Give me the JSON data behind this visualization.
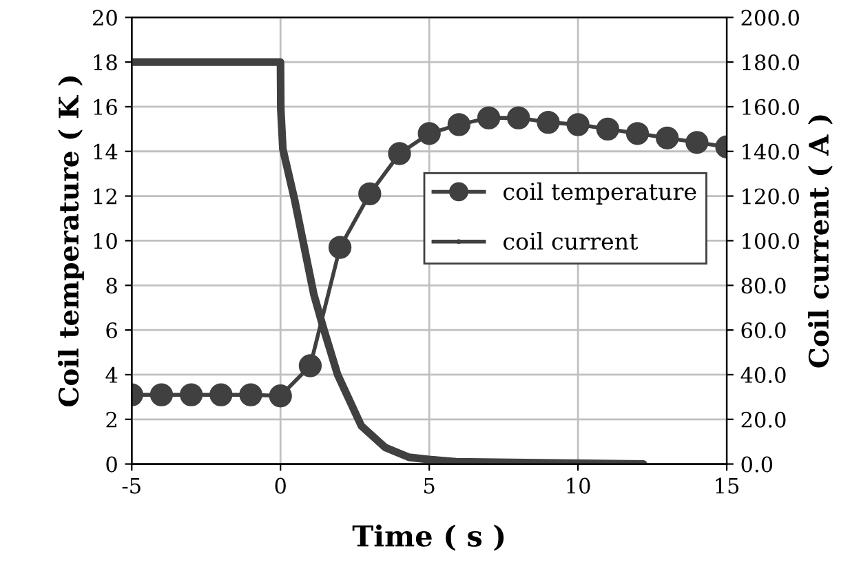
{
  "chart_data": {
    "type": "line",
    "xlabel": "Time ( s )",
    "ylabel": "Coil temperature ( K )",
    "y2label": "Coil current ( A )",
    "xlim": [
      -5,
      15
    ],
    "xticks": [
      -5,
      0,
      5,
      10,
      15
    ],
    "ylim": [
      0,
      20
    ],
    "yticks": [
      0,
      2,
      4,
      6,
      8,
      10,
      12,
      14,
      16,
      18,
      20
    ],
    "y2lim": [
      0,
      200
    ],
    "y2ticks": [
      {
        "value": 0,
        "label": "0.0"
      },
      {
        "value": 20,
        "label": "20.0"
      },
      {
        "value": 40,
        "label": "40.0"
      },
      {
        "value": 60,
        "label": "60.0"
      },
      {
        "value": 80,
        "label": "80.0"
      },
      {
        "value": 100,
        "label": "100.0"
      },
      {
        "value": 120,
        "label": "120.0"
      },
      {
        "value": 140,
        "label": "140.0"
      },
      {
        "value": 160,
        "label": "160.0"
      },
      {
        "value": 180,
        "label": "180.0"
      },
      {
        "value": 200,
        "label": "200.0"
      }
    ],
    "grid": true,
    "legend": "right",
    "series": [
      {
        "name": "coil temperature",
        "color": "#404040",
        "marker": "circle",
        "x": [
          -5,
          -4,
          -3,
          -2,
          -1,
          0,
          1,
          2,
          3,
          4,
          5,
          6,
          7,
          8,
          9,
          10,
          11,
          12,
          13,
          14,
          15
        ],
        "values": [
          3.1,
          3.1,
          3.1,
          3.1,
          3.1,
          3.05,
          4.4,
          9.7,
          12.1,
          13.9,
          14.8,
          15.2,
          15.5,
          15.5,
          15.3,
          15.2,
          15.0,
          14.8,
          14.6,
          14.4,
          14.2
        ]
      },
      {
        "name": "coil current",
        "color": "#404040",
        "marker": "none",
        "axis": "y2",
        "x": [
          -5,
          0,
          0.01,
          0.08,
          0.48,
          1.12,
          1.44,
          1.92,
          2.72,
          3.52,
          4.32,
          5,
          5.9,
          12.2
        ],
        "values": [
          180,
          180,
          159,
          141,
          118,
          76,
          61,
          40,
          17,
          7.4,
          3,
          2,
          1,
          0
        ]
      }
    ]
  }
}
